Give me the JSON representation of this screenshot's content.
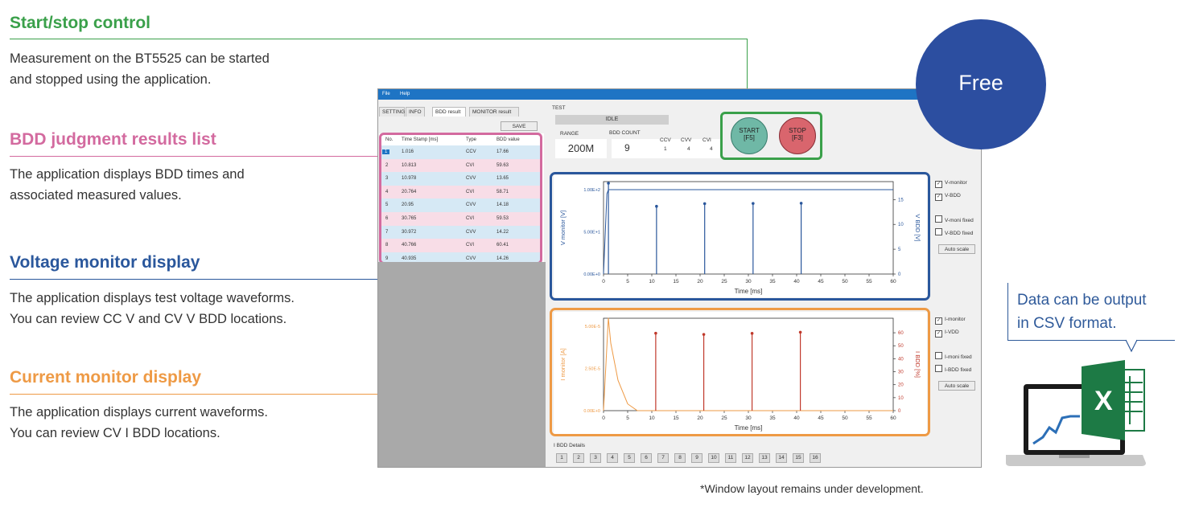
{
  "sections": {
    "start_stop": {
      "title": "Start/stop control",
      "desc": "Measurement on the BT5525 can be started\nand stopped using the application."
    },
    "bdd_list": {
      "title": "BDD judgment results list",
      "desc": "The application displays BDD times and\nassociated measured values."
    },
    "voltage": {
      "title": "Voltage monitor display",
      "desc": "The application displays test voltage waveforms.\nYou can review CC V and CV V BDD locations."
    },
    "current": {
      "title": "Current monitor display",
      "desc": "The application displays current waveforms.\nYou can review CV I BDD locations."
    }
  },
  "colors": {
    "green": "#3aa04a",
    "pink": "#d36a9f",
    "blue": "#2a579c",
    "orange": "#ee9a45",
    "badge": "#2c4ea0",
    "excel": "#1d7a45"
  },
  "free_badge": "Free",
  "csv_callout": "Data can be output\nin CSV format.",
  "footnote": "*Window layout remains under development.",
  "app": {
    "menu": [
      "File",
      "Help"
    ],
    "tabs": [
      "SETTING",
      "INFO",
      "BDD result",
      "MONITOR result"
    ],
    "save_label": "SAVE",
    "table": {
      "headers": [
        "No.",
        "Time Stamp [ms]",
        "Type",
        "BDD value"
      ],
      "rows": [
        [
          "1",
          "1.016",
          "CCV",
          "17.66"
        ],
        [
          "2",
          "10.813",
          "CVI",
          "59.63"
        ],
        [
          "3",
          "10.978",
          "CVV",
          "13.65"
        ],
        [
          "4",
          "20.764",
          "CVI",
          "58.71"
        ],
        [
          "5",
          "20.95",
          "CVV",
          "14.18"
        ],
        [
          "6",
          "30.765",
          "CVI",
          "59.53"
        ],
        [
          "7",
          "30.972",
          "CVV",
          "14.22"
        ],
        [
          "8",
          "40.766",
          "CVI",
          "60.41"
        ],
        [
          "9",
          "40.935",
          "CVV",
          "14.26"
        ]
      ]
    },
    "test_label": "TEST",
    "status": "IDLE",
    "range_label": "RANGE",
    "range_value": "200M",
    "bdd_count_label": "BDD COUNT",
    "bdd_count_value": "9",
    "counts": [
      {
        "label": "CCV",
        "value": "1"
      },
      {
        "label": "CVV",
        "value": "4"
      },
      {
        "label": "CVI",
        "value": "4"
      }
    ],
    "start_button": {
      "line1": "START",
      "line2": "[F5]"
    },
    "stop_button": {
      "line1": "STOP",
      "line2": "[F3]"
    },
    "voltage_chart": {
      "left_ticks": [
        "1.00E+2",
        "5.00E+1",
        "0.00E+0"
      ],
      "right_ticks": [
        "15",
        "10",
        "5",
        "0"
      ],
      "ylabel": "V monitor [V]",
      "y2label": "V BDD [V]",
      "x_ticks": [
        "0",
        "5",
        "10",
        "15",
        "20",
        "25",
        "30",
        "35",
        "40",
        "45",
        "50",
        "55",
        "60"
      ],
      "xlabel": "Time [ms]",
      "checks": [
        {
          "label": "V-monitor",
          "checked": true
        },
        {
          "label": "V-BDD",
          "checked": true
        },
        {
          "label": "V-moni fixed",
          "checked": false
        },
        {
          "label": "V-BDD fixed",
          "checked": false
        }
      ],
      "auto_scale": "Auto scale"
    },
    "current_chart": {
      "left_ticks": [
        "5.00E-5",
        "2.50E-5",
        "0.00E+0"
      ],
      "right_ticks": [
        "60",
        "50",
        "40",
        "30",
        "20",
        "10",
        "0"
      ],
      "ylabel": "I monitor [A]",
      "y2label": "I BDD [%]",
      "x_ticks": [
        "0",
        "5",
        "10",
        "15",
        "20",
        "25",
        "30",
        "35",
        "40",
        "45",
        "50",
        "55",
        "60"
      ],
      "xlabel": "Time [ms]",
      "checks": [
        {
          "label": "I-monitor",
          "checked": true
        },
        {
          "label": "I-VDD",
          "checked": true
        },
        {
          "label": "I-moni fixed",
          "checked": false
        },
        {
          "label": "I-BDD fixed",
          "checked": false
        }
      ],
      "auto_scale": "Auto scale"
    },
    "ibdd_label": "I BDD Details",
    "ibdd_buttons": [
      "1",
      "2",
      "3",
      "4",
      "5",
      "6",
      "7",
      "8",
      "9",
      "10",
      "11",
      "12",
      "13",
      "14",
      "15",
      "16"
    ]
  },
  "chart_data": [
    {
      "type": "line",
      "xlabel": "Time [ms]",
      "ylabel": "V monitor [V]",
      "xlim": [
        0,
        60
      ],
      "ylim": [
        0,
        100
      ],
      "series": [
        {
          "x": [
            0,
            0.7,
            1.016,
            1.5,
            60
          ],
          "values": [
            0,
            95,
            100,
            100,
            100
          ]
        }
      ],
      "bdd_markers": {
        "x": [
          1.016,
          10.978,
          20.95,
          30.972,
          40.935
        ],
        "values": [
          17.66,
          13.65,
          14.18,
          14.22,
          14.26
        ]
      }
    },
    {
      "type": "line",
      "xlabel": "Time [ms]",
      "ylabel": "I monitor [A]",
      "xlim": [
        0,
        60
      ],
      "ylim": [
        0,
        5e-05
      ],
      "series": [
        {
          "x": [
            0,
            1.0,
            1.5,
            3,
            5,
            7,
            60
          ],
          "values": [
            0,
            5.5e-05,
            4e-05,
            1.8e-05,
            4e-06,
            0,
            0
          ]
        }
      ],
      "bdd_markers": {
        "x": [
          10.813,
          20.764,
          30.765,
          40.766
        ],
        "values": [
          59.63,
          58.71,
          59.53,
          60.41
        ]
      }
    }
  ]
}
